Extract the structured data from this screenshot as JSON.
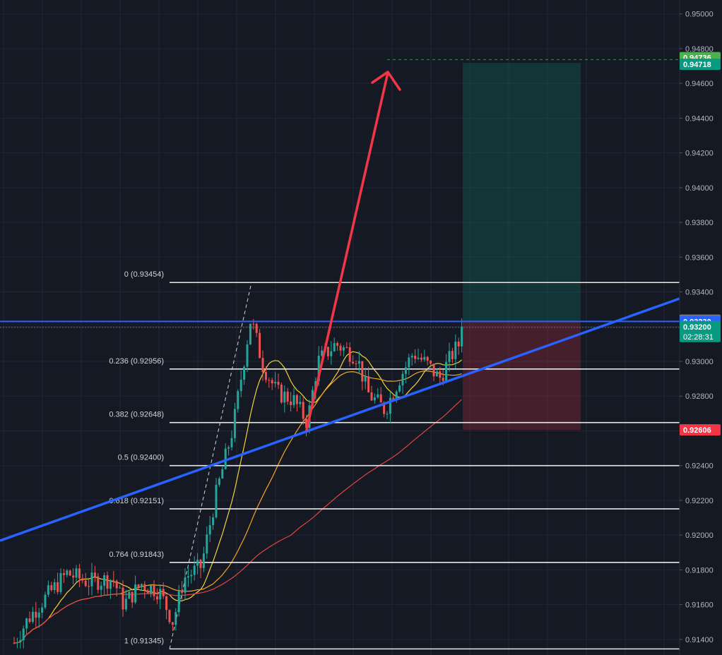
{
  "chart_data": {
    "type": "candlestick",
    "ylim": [
      0.9131,
      0.9508
    ],
    "y_ticks": [
      "0.95000",
      "0.94800",
      "0.94600",
      "0.94400",
      "0.94200",
      "0.94000",
      "0.93800",
      "0.93600",
      "0.93400",
      "0.93200",
      "0.93000",
      "0.92800",
      "0.92600",
      "0.92400",
      "0.92200",
      "0.92000",
      "0.91800",
      "0.91600",
      "0.91400"
    ],
    "fib_levels": [
      {
        "label": "0 (0.93454)",
        "value": 0.93454
      },
      {
        "label": "0.236 (0.92956)",
        "value": 0.92956
      },
      {
        "label": "0.382 (0.92648)",
        "value": 0.92648
      },
      {
        "label": "0.5 (0.92400)",
        "value": 0.924
      },
      {
        "label": "0.618 (0.92151)",
        "value": 0.92151
      },
      {
        "label": "0.764 (0.91843)",
        "value": 0.91843
      },
      {
        "label": "1 (0.91345)",
        "value": 0.91345
      }
    ],
    "price_badges": [
      {
        "label": "0.94736",
        "value": 0.94736,
        "color": "#4caf50"
      },
      {
        "label": "0.94718",
        "value": 0.94718,
        "color": "#089981"
      },
      {
        "label": "0.93237",
        "value": 0.93237,
        "color": "#787b86"
      },
      {
        "label": "0.93230",
        "value": 0.9323,
        "color": "#2962ff"
      },
      {
        "label": "0.93200",
        "sub": "02:28:31",
        "value": 0.932,
        "color": "#089981"
      },
      {
        "label": "0.92606",
        "value": 0.92606,
        "color": "#f23645"
      }
    ],
    "position": {
      "entry": 0.9323,
      "target": 0.94718,
      "stop": 0.92606
    },
    "horizontal_line": 0.9323,
    "colors": {
      "up": "#26a69a",
      "down": "#ef5350",
      "trendline": "#2962ff",
      "arrow": "#f23645",
      "ma_fast": "#f2d33a",
      "ma_mid": "#f5a623",
      "ma_slow": "#e0453f"
    }
  }
}
